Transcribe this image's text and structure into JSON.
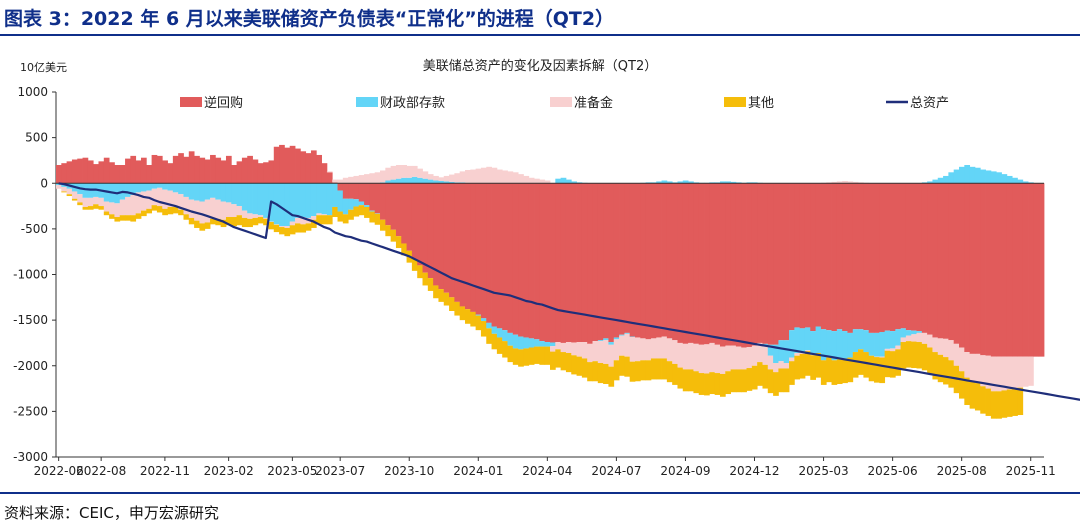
{
  "figure": {
    "title": "图表 3：2022 年 6 月以来美联储资产负债表“正常化”的进程（QT2）",
    "source": "资料来源：CEIC，申万宏源研究"
  },
  "colors": {
    "reverse_repo": "#e15b5b",
    "fiscal_deposit": "#63d5f7",
    "reserves": "#f8d0d0",
    "other": "#f5bd0a",
    "total_assets": "#1f2e7a",
    "brand": "#0f2f8a"
  },
  "chart_data": {
    "type": "bar",
    "stacked": true,
    "title": "美联储总资产的变化及因素拆解（QT2）",
    "unit_label": "10亿美元",
    "ylim": [
      -3000,
      1000
    ],
    "y_ticks": [
      1000,
      500,
      0,
      -500,
      -1000,
      -1500,
      -2000,
      -2500,
      -3000
    ],
    "x_tick_labels": [
      "2022-06",
      "2022-08",
      "2022-11",
      "2023-02",
      "2023-05",
      "2023-07",
      "2023-10",
      "2024-01",
      "2024-04",
      "2024-07",
      "2024-09",
      "2024-12",
      "2025-03",
      "2025-06",
      "2025-08",
      "2025-11"
    ],
    "x_tick_index": [
      0,
      8,
      20,
      32,
      44,
      53,
      66,
      79,
      92,
      105,
      118,
      131,
      144,
      157,
      170,
      183
    ],
    "legend": {
      "position": "top",
      "entries": [
        "逆回购",
        "财政部存款",
        "准备金",
        "其他",
        "总资产"
      ]
    },
    "weekly_interval": "1 week",
    "series": [
      {
        "name": "逆回购",
        "kind": "bar",
        "values": [
          200,
          220,
          240,
          260,
          270,
          280,
          250,
          210,
          240,
          280,
          230,
          200,
          200,
          270,
          300,
          250,
          280,
          200,
          310,
          300,
          250,
          220,
          300,
          330,
          290,
          350,
          300,
          280,
          260,
          310,
          280,
          250,
          300,
          200,
          240,
          280,
          300,
          260,
          220,
          230,
          250,
          400,
          420,
          390,
          410,
          380,
          350,
          330,
          360,
          310,
          220,
          120,
          10,
          -80,
          -170,
          -170,
          -175,
          -200,
          -240,
          -300,
          -330,
          -400,
          -460,
          -510,
          -580,
          -660,
          -740,
          -830,
          -900,
          -980,
          -1040,
          -1120,
          -1160,
          -1200,
          -1250,
          -1300,
          -1350,
          -1380,
          -1410,
          -1440,
          -1480,
          -1530,
          -1570,
          -1590,
          -1610,
          -1640,
          -1660,
          -1680,
          -1690,
          -1700,
          -1710,
          -1730,
          -1740,
          -1745,
          -1740,
          -1750,
          -1740,
          -1745,
          -1740,
          -1740,
          -1760,
          -1730,
          -1720,
          -1700,
          -1740,
          -1690,
          -1660,
          -1640,
          -1680,
          -1690,
          -1700,
          -1710,
          -1700,
          -1690,
          -1680,
          -1700,
          -1720,
          -1750,
          -1760,
          -1750,
          -1760,
          -1770,
          -1765,
          -1750,
          -1770,
          -1790,
          -1780,
          -1780,
          -1790,
          -1800,
          -1795,
          -1780,
          -1750,
          -1760,
          -1770,
          -1770,
          -1720,
          -1720,
          -1610,
          -1580,
          -1590,
          -1580,
          -1620,
          -1570,
          -1600,
          -1610,
          -1620,
          -1600,
          -1620,
          -1640,
          -1600,
          -1600,
          -1610,
          -1640,
          -1640,
          -1630,
          -1615,
          -1620,
          -1600,
          -1590,
          -1610,
          -1615,
          -1620,
          -1640,
          -1660,
          -1690,
          -1700,
          -1705,
          -1720,
          -1760,
          -1800,
          -1850,
          -1870,
          -1870,
          -1885,
          -1890,
          -1900,
          -1900,
          -1900,
          -1900,
          -1900,
          -1900,
          -1900,
          -1900,
          -1900,
          -1900
        ]
      },
      {
        "name": "财政部存款",
        "kind": "bar",
        "values": [
          -20,
          -40,
          -60,
          -90,
          -120,
          -160,
          -160,
          -150,
          -160,
          -200,
          -210,
          -220,
          -180,
          -150,
          -130,
          -100,
          -90,
          -80,
          -60,
          -50,
          -70,
          -80,
          -100,
          -120,
          -150,
          -180,
          -190,
          -200,
          -180,
          -160,
          -180,
          -200,
          -210,
          -230,
          -250,
          -300,
          -330,
          -340,
          -350,
          -380,
          -420,
          -450,
          -470,
          -470,
          -420,
          -380,
          -370,
          -380,
          -360,
          -330,
          -340,
          -350,
          -260,
          -230,
          -170,
          -120,
          -80,
          -40,
          -20,
          -10,
          -5,
          10,
          30,
          40,
          50,
          60,
          60,
          70,
          60,
          50,
          40,
          30,
          25,
          20,
          15,
          10,
          10,
          5,
          0,
          -10,
          -30,
          -60,
          -80,
          -100,
          -120,
          -140,
          -150,
          -140,
          -120,
          -100,
          -80,
          -60,
          -50,
          -40,
          50,
          60,
          40,
          20,
          10,
          5,
          0,
          0,
          -10,
          -20,
          -30,
          -20,
          -10,
          -10,
          -5,
          0,
          5,
          10,
          10,
          20,
          30,
          20,
          10,
          20,
          30,
          20,
          10,
          5,
          5,
          10,
          10,
          20,
          20,
          15,
          10,
          5,
          10,
          10,
          5,
          -30,
          -120,
          -200,
          -230,
          -250,
          -300,
          -280,
          -260,
          -250,
          -260,
          -290,
          -340,
          -300,
          -320,
          -330,
          -300,
          -270,
          -250,
          -220,
          -240,
          -250,
          -260,
          -270,
          -200,
          -190,
          -180,
          -100,
          -60,
          -40,
          -20,
          10,
          20,
          40,
          60,
          80,
          120,
          150,
          180,
          200,
          180,
          170,
          150,
          140,
          130,
          120,
          100,
          80,
          60,
          40,
          20,
          10
        ]
      },
      {
        "name": "准备金",
        "kind": "bar",
        "values": [
          -40,
          -50,
          -60,
          -80,
          -90,
          -100,
          -90,
          -80,
          -90,
          -110,
          -130,
          -150,
          -170,
          -200,
          -220,
          -230,
          -210,
          -200,
          -180,
          -200,
          -210,
          -180,
          -160,
          -170,
          -190,
          -200,
          -220,
          -240,
          -250,
          -230,
          -210,
          -200,
          -160,
          -140,
          -100,
          -80,
          -60,
          -40,
          -20,
          -10,
          -5,
          -5,
          -10,
          -20,
          -40,
          -60,
          -80,
          -60,
          -40,
          -20,
          -10,
          10,
          30,
          40,
          60,
          70,
          80,
          90,
          100,
          110,
          120,
          130,
          140,
          150,
          150,
          140,
          130,
          120,
          100,
          80,
          60,
          50,
          40,
          60,
          80,
          100,
          120,
          140,
          150,
          160,
          170,
          180,
          170,
          150,
          140,
          130,
          120,
          100,
          80,
          60,
          50,
          40,
          30,
          -60,
          -80,
          -100,
          -120,
          -140,
          -160,
          -180,
          -200,
          -220,
          -240,
          -260,
          -240,
          -230,
          -220,
          -250,
          -270,
          -260,
          -240,
          -230,
          -220,
          -230,
          -240,
          -250,
          -260,
          -270,
          -280,
          -290,
          -300,
          -310,
          -320,
          -320,
          -310,
          -300,
          -280,
          -260,
          -250,
          -240,
          -230,
          -220,
          -210,
          -200,
          -150,
          -100,
          -80,
          -60,
          -40,
          -30,
          -20,
          -10,
          -5,
          0,
          5,
          10,
          15,
          20,
          25,
          20,
          15,
          10,
          5,
          0,
          -5,
          -10,
          -20,
          -30,
          -40,
          -50,
          -60,
          -80,
          -100,
          -120,
          -140,
          -160,
          -180,
          -200,
          -220,
          -240,
          -260,
          -280,
          -300,
          -320,
          -340,
          -360,
          -380,
          -380,
          -370,
          -360,
          -350,
          -340,
          -330,
          -320,
          -310,
          -300
        ]
      },
      {
        "name": "其他",
        "kind": "bar",
        "values": [
          0,
          -10,
          -20,
          -20,
          -30,
          -30,
          -40,
          -50,
          -40,
          -40,
          -50,
          -50,
          -60,
          -60,
          -70,
          -60,
          -60,
          -50,
          -60,
          -70,
          -70,
          -80,
          -70,
          -60,
          -60,
          -70,
          -80,
          -80,
          -70,
          -60,
          -70,
          -80,
          -90,
          -100,
          -110,
          -100,
          -90,
          -80,
          -70,
          -70,
          -80,
          -80,
          -80,
          -90,
          -100,
          -100,
          -90,
          -80,
          -90,
          -100,
          -100,
          -100,
          -110,
          -110,
          -100,
          -110,
          -110,
          -110,
          -120,
          -120,
          -120,
          -120,
          -120,
          -130,
          -130,
          -130,
          -130,
          -130,
          -140,
          -140,
          -140,
          -140,
          -140,
          -140,
          -150,
          -150,
          -150,
          -160,
          -160,
          -160,
          -170,
          -170,
          -170,
          -180,
          -180,
          -180,
          -180,
          -190,
          -190,
          -190,
          -190,
          -200,
          -200,
          -200,
          -200,
          -200,
          -210,
          -210,
          -210,
          -210,
          -210,
          -220,
          -220,
          -220,
          -220,
          -220,
          -220,
          -220,
          -220,
          -220,
          -220,
          -220,
          -230,
          -230,
          -230,
          -230,
          -230,
          -230,
          -240,
          -240,
          -240,
          -240,
          -240,
          -240,
          -240,
          -250,
          -250,
          -250,
          -250,
          -250,
          -250,
          -260,
          -260,
          -260,
          -260,
          -260,
          -260,
          -260,
          -260,
          -260,
          -270,
          -270,
          -270,
          -270,
          -270,
          -270,
          -270,
          -270,
          -270,
          -270,
          -280,
          -280,
          -280,
          -280,
          -280,
          -280,
          -290,
          -290,
          -290,
          -290,
          -290,
          -290,
          -290,
          -290,
          -290,
          -300,
          -300,
          -300,
          -300,
          -300,
          -300,
          -300,
          -300,
          -300,
          -300,
          -300,
          -300,
          -300,
          -300,
          -300,
          -300,
          -300
        ]
      },
      {
        "name": "总资产",
        "kind": "line",
        "values": [
          0,
          -10,
          -25,
          -40,
          -55,
          -65,
          -70,
          -70,
          -80,
          -90,
          -100,
          -110,
          -95,
          -100,
          -115,
          -130,
          -150,
          -160,
          -185,
          -205,
          -220,
          -235,
          -250,
          -270,
          -290,
          -310,
          -325,
          -340,
          -360,
          -380,
          -400,
          -420,
          -450,
          -480,
          -500,
          -520,
          -540,
          -560,
          -580,
          -600,
          -200,
          -230,
          -270,
          -310,
          -350,
          -360,
          -380,
          -400,
          -420,
          -450,
          -480,
          -500,
          -540,
          -560,
          -580,
          -590,
          -610,
          -630,
          -640,
          -660,
          -680,
          -700,
          -720,
          -740,
          -760,
          -780,
          -800,
          -830,
          -860,
          -890,
          -920,
          -950,
          -980,
          -1010,
          -1040,
          -1060,
          -1080,
          -1100,
          -1120,
          -1140,
          -1160,
          -1180,
          -1200,
          -1210,
          -1220,
          -1230,
          -1250,
          -1270,
          -1290,
          -1300,
          -1320,
          -1330,
          -1350,
          -1370,
          -1390,
          -1400,
          -1410,
          -1420,
          -1430,
          -1440,
          -1450,
          -1460,
          -1470,
          -1480,
          -1490,
          -1500,
          -1510,
          -1520,
          -1530,
          -1540,
          -1550,
          -1560,
          -1570,
          -1580,
          -1590,
          -1600,
          -1610,
          -1620,
          -1630,
          -1640,
          -1650,
          -1660,
          -1670,
          -1680,
          -1690,
          -1700,
          -1710,
          -1720,
          -1730,
          -1740,
          -1750,
          -1760,
          -1770,
          -1780,
          -1790,
          -1800,
          -1810,
          -1820,
          -1830,
          -1840,
          -1850,
          -1860,
          -1870,
          -1880,
          -1890,
          -1900,
          -1910,
          -1920,
          -1930,
          -1940,
          -1950,
          -1960,
          -1970,
          -1980,
          -1990,
          -2000,
          -2010,
          -2020,
          -2030,
          -2040,
          -2050,
          -2060,
          -2070,
          -2080,
          -2090,
          -2100,
          -2110,
          -2120,
          -2130,
          -2140,
          -2150,
          -2160,
          -2170,
          -2180,
          -2190,
          -2200,
          -2210,
          -2220,
          -2230,
          -2240,
          -2250,
          -2260,
          -2270,
          -2280,
          -2290,
          -2300,
          -2310,
          -2320,
          -2330,
          -2340,
          -2350,
          -2360,
          -2370,
          -2380,
          -2390,
          -2380
        ]
      }
    ]
  }
}
